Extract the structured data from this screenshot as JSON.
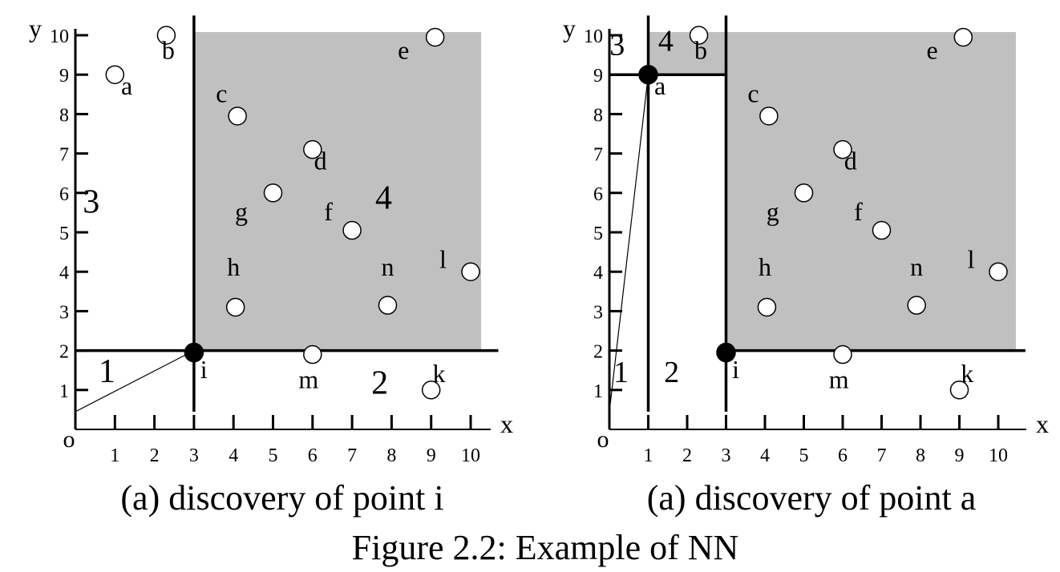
{
  "figure_caption": "Figure 2.2: Example of NN",
  "panels": [
    {
      "caption": "(a) discovery of point i",
      "axis_x_label": "x",
      "axis_y_label": "y",
      "origin_label": "o",
      "x_ticks": [
        "1",
        "2",
        "3",
        "4",
        "5",
        "6",
        "7",
        "8",
        "9",
        "10"
      ],
      "y_ticks": [
        "1",
        "2",
        "3",
        "4",
        "5",
        "6",
        "7",
        "8",
        "9",
        "10"
      ],
      "shaded_region": {
        "x_from": 3,
        "y_from": 2
      },
      "partition_lines": [
        {
          "x1": 3,
          "y1": 0.45,
          "x2": 3,
          "y2": 10.5
        },
        {
          "x1": 0,
          "y1": 2,
          "x2": 10.7,
          "y2": 2
        }
      ],
      "query_line": {
        "x1": 0,
        "y1": 0.45,
        "x2": 3,
        "y2": 2
      },
      "region_labels": [
        {
          "text": "1",
          "x": 0.8,
          "y": 1.2
        },
        {
          "text": "2",
          "x": 7.7,
          "y": 0.9
        },
        {
          "text": "3",
          "x": 0.4,
          "y": 5.5
        },
        {
          "text": "4",
          "x": 7.8,
          "y": 5.6
        }
      ],
      "points": [
        {
          "name": "a",
          "x": 1,
          "y": 9,
          "filled": false,
          "lx": 1.3,
          "ly": 8.5
        },
        {
          "name": "b",
          "x": 2.3,
          "y": 10,
          "filled": false,
          "lx": 2.35,
          "ly": 9.4
        },
        {
          "name": "c",
          "x": 4.1,
          "y": 7.95,
          "filled": false,
          "lx": 3.7,
          "ly": 8.3
        },
        {
          "name": "d",
          "x": 6,
          "y": 7.1,
          "filled": false,
          "lx": 6.2,
          "ly": 6.6
        },
        {
          "name": "e",
          "x": 9.1,
          "y": 9.95,
          "filled": false,
          "lx": 8.3,
          "ly": 9.4
        },
        {
          "name": "f",
          "x": 7,
          "y": 5.05,
          "filled": false,
          "lx": 6.4,
          "ly": 5.3
        },
        {
          "name": "g",
          "x": 5,
          "y": 6,
          "filled": false,
          "lx": 4.2,
          "ly": 5.3
        },
        {
          "name": "h",
          "x": 4.05,
          "y": 3.1,
          "filled": false,
          "lx": 4,
          "ly": 3.9
        },
        {
          "name": "i",
          "x": 3,
          "y": 1.95,
          "filled": true,
          "lx": 3.25,
          "ly": 1.3
        },
        {
          "name": "k",
          "x": 9,
          "y": 1,
          "filled": false,
          "lx": 9.2,
          "ly": 1.2
        },
        {
          "name": "l",
          "x": 10,
          "y": 4,
          "filled": false,
          "lx": 9.3,
          "ly": 4.1
        },
        {
          "name": "m",
          "x": 6,
          "y": 1.9,
          "filled": false,
          "lx": 5.9,
          "ly": 1.05
        },
        {
          "name": "n",
          "x": 7.9,
          "y": 3.15,
          "filled": false,
          "lx": 7.9,
          "ly": 3.9
        }
      ]
    },
    {
      "caption": "(a) discovery of point a",
      "axis_x_label": "x",
      "axis_y_label": "y",
      "origin_label": "o",
      "x_ticks": [
        "1",
        "2",
        "3",
        "4",
        "5",
        "6",
        "7",
        "8",
        "9",
        "10"
      ],
      "y_ticks": [
        "1",
        "2",
        "3",
        "4",
        "5",
        "6",
        "7",
        "8",
        "9",
        "10"
      ],
      "shaded_region_l": {
        "x_from": 3,
        "y_from": 2,
        "x_left": 1,
        "y_left": 9
      },
      "partition_lines": [
        {
          "x1": 3,
          "y1": 0.45,
          "x2": 3,
          "y2": 10.5
        },
        {
          "x1": 3,
          "y1": 2,
          "x2": 10.7,
          "y2": 2
        },
        {
          "x1": 1,
          "y1": 0.45,
          "x2": 1,
          "y2": 10.5
        },
        {
          "x1": 0,
          "y1": 9,
          "x2": 3,
          "y2": 9
        }
      ],
      "query_line": {
        "x1": 0,
        "y1": 0.45,
        "x2": 1,
        "y2": 9
      },
      "region_labels": [
        {
          "text": "1",
          "x": 0.3,
          "y": 1.2
        },
        {
          "text": "2",
          "x": 1.6,
          "y": 1.2
        },
        {
          "text": "3",
          "x": 0.2,
          "y": 9.5
        },
        {
          "text": "4",
          "x": 1.45,
          "y": 9.6
        }
      ],
      "points": [
        {
          "name": "a",
          "x": 1,
          "y": 9,
          "filled": true,
          "lx": 1.3,
          "ly": 8.5
        },
        {
          "name": "b",
          "x": 2.3,
          "y": 10,
          "filled": false,
          "lx": 2.35,
          "ly": 9.4
        },
        {
          "name": "c",
          "x": 4.1,
          "y": 7.95,
          "filled": false,
          "lx": 3.7,
          "ly": 8.3
        },
        {
          "name": "d",
          "x": 6,
          "y": 7.1,
          "filled": false,
          "lx": 6.2,
          "ly": 6.6
        },
        {
          "name": "e",
          "x": 9.1,
          "y": 9.95,
          "filled": false,
          "lx": 8.3,
          "ly": 9.4
        },
        {
          "name": "f",
          "x": 7,
          "y": 5.05,
          "filled": false,
          "lx": 6.4,
          "ly": 5.3
        },
        {
          "name": "g",
          "x": 5,
          "y": 6,
          "filled": false,
          "lx": 4.2,
          "ly": 5.3
        },
        {
          "name": "h",
          "x": 4.05,
          "y": 3.1,
          "filled": false,
          "lx": 4,
          "ly": 3.9
        },
        {
          "name": "i",
          "x": 3,
          "y": 1.95,
          "filled": true,
          "lx": 3.25,
          "ly": 1.3
        },
        {
          "name": "k",
          "x": 9,
          "y": 1,
          "filled": false,
          "lx": 9.2,
          "ly": 1.2
        },
        {
          "name": "l",
          "x": 10,
          "y": 4,
          "filled": false,
          "lx": 9.3,
          "ly": 4.1
        },
        {
          "name": "m",
          "x": 6,
          "y": 1.9,
          "filled": false,
          "lx": 5.9,
          "ly": 1.05
        },
        {
          "name": "n",
          "x": 7.9,
          "y": 3.15,
          "filled": false,
          "lx": 7.9,
          "ly": 3.9
        }
      ]
    }
  ],
  "colors": {
    "shade": "#c0c0c0",
    "ink": "#000000",
    "paper": "#ffffff"
  }
}
